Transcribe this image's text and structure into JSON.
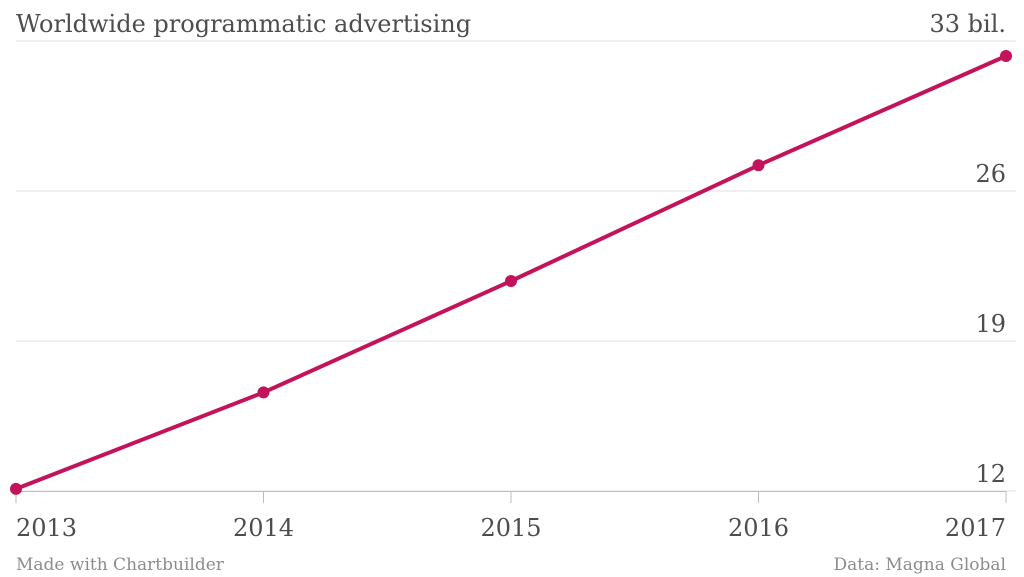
{
  "title": "Worldwide programmatic advertising",
  "footer": {
    "credit": "Made with Chartbuilder",
    "source": "Data: Magna Global"
  },
  "colors": {
    "series": "#c3135a",
    "text": "#4d4d4d",
    "muted": "#8c8c8c",
    "grid": "#e0e0e0"
  },
  "chart_data": {
    "type": "line",
    "title": "Worldwide programmatic advertising",
    "xlabel": "",
    "ylabel": "",
    "x": [
      "2013",
      "2014",
      "2015",
      "2016",
      "2017"
    ],
    "series": [
      {
        "values": [
          12.1,
          16.6,
          21.8,
          27.2,
          32.3
        ]
      }
    ],
    "ylim": [
      12,
      33
    ],
    "y_ticks": [
      12,
      19,
      26,
      33
    ],
    "y_tick_labels": [
      "12",
      "19",
      "26",
      "33 bil."
    ],
    "grid": true,
    "legend": "none"
  }
}
